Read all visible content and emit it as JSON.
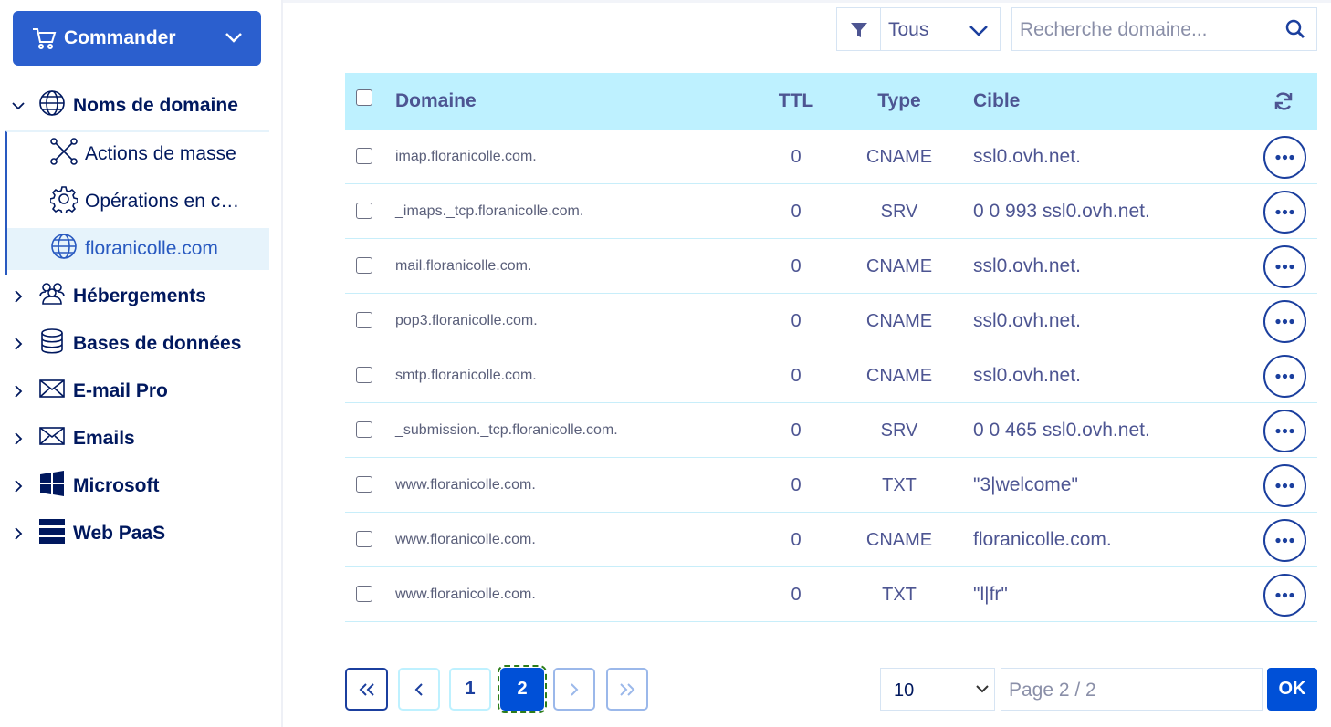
{
  "sidebar": {
    "order_button": "Commander",
    "menu": [
      {
        "label": "Noms de domaine",
        "expanded": true,
        "children": [
          "Actions de masse",
          "Opérations en c…",
          "floranicolle.com"
        ]
      },
      {
        "label": "Hébergements"
      },
      {
        "label": "Bases de données"
      },
      {
        "label": "E-mail Pro"
      },
      {
        "label": "Emails"
      },
      {
        "label": "Microsoft"
      },
      {
        "label": "Web PaaS"
      }
    ]
  },
  "toolbar": {
    "filter": "Tous",
    "search_placeholder": "Recherche domaine..."
  },
  "table": {
    "headers": [
      "Domaine",
      "TTL",
      "Type",
      "Cible"
    ],
    "rows": [
      [
        "imap.floranicolle.com.",
        0,
        "CNAME",
        "ssl0.ovh.net."
      ],
      [
        "_imaps._tcp.floranicolle.com.",
        0,
        "SRV",
        "0 0 993 ssl0.ovh.net."
      ],
      [
        "mail.floranicolle.com.",
        0,
        "CNAME",
        "ssl0.ovh.net."
      ],
      [
        "pop3.floranicolle.com.",
        0,
        "CNAME",
        "ssl0.ovh.net."
      ],
      [
        "smtp.floranicolle.com.",
        0,
        "CNAME",
        "ssl0.ovh.net."
      ],
      [
        "_submission._tcp.floranicolle.com.",
        0,
        "SRV",
        "0 0 465 ssl0.ovh.net."
      ],
      [
        "www.floranicolle.com.",
        0,
        "TXT",
        "\"3|welcome\""
      ],
      [
        "www.floranicolle.com.",
        0,
        "CNAME",
        "floranicolle.com."
      ],
      [
        "www.floranicolle.com.",
        0,
        "TXT",
        "\"l|fr\""
      ]
    ]
  },
  "pagination": {
    "pages": [
      1,
      2
    ],
    "current": 2,
    "page_size": 10,
    "page_placeholder": "Page 2 / 2",
    "submit": "OK"
  }
}
